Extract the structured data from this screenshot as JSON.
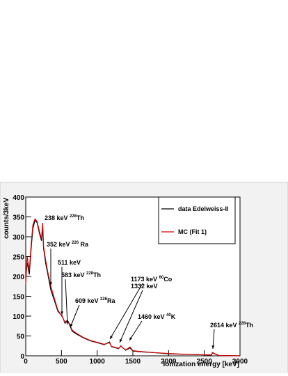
{
  "chart_data": {
    "type": "line",
    "xlabel": "Ionization energy [keV]",
    "ylabel": "counts/3keV",
    "x": [
      0,
      20,
      50,
      80,
      100,
      130,
      160,
      190,
      220,
      238,
      250,
      280,
      310,
      352,
      400,
      450,
      511,
      550,
      583,
      609,
      650,
      700,
      800,
      900,
      1000,
      1100,
      1173,
      1200,
      1300,
      1332,
      1400,
      1460,
      1500,
      1600,
      1800,
      2000,
      2200,
      2400,
      2600,
      2614,
      2700,
      3000
    ],
    "series": [
      {
        "name": "data Edelweiss-II",
        "color": "#000000",
        "values": [
          200,
          235,
          205,
          280,
          320,
          342,
          335,
          310,
          290,
          320,
          270,
          232,
          205,
          165,
          140,
          112,
          100,
          82,
          90,
          80,
          62,
          56,
          46,
          38,
          33,
          28,
          35,
          23,
          18,
          25,
          14,
          20,
          12,
          10,
          8,
          5,
          4,
          3,
          2,
          8,
          1,
          0
        ]
      },
      {
        "name": "MC (Fit 1)",
        "color": "#d40000",
        "values": [
          180,
          250,
          215,
          290,
          330,
          345,
          338,
          315,
          295,
          335,
          275,
          240,
          210,
          175,
          145,
          115,
          98,
          85,
          88,
          82,
          65,
          58,
          47,
          39,
          34,
          29,
          33,
          24,
          19,
          24,
          15,
          22,
          13,
          11,
          8,
          6,
          4,
          3,
          2,
          7,
          1,
          0
        ]
      }
    ],
    "xlim": [
      0,
      3000
    ],
    "ylim": [
      0,
      400
    ],
    "xticks": [
      0,
      500,
      1000,
      1500,
      2000,
      2500,
      3000
    ],
    "yticks": [
      0,
      50,
      100,
      150,
      200,
      250,
      300,
      350,
      400
    ],
    "legend": "upper right",
    "annotations": [
      [
        {
          "text": "238 keV "
        },
        {
          "sup": "228"
        },
        {
          "text": "Th"
        }
      ],
      [
        {
          "text": "352 keV "
        },
        {
          "sup": "226"
        },
        {
          "text": " Ra"
        }
      ],
      [
        {
          "text": "511 keV"
        }
      ],
      [
        {
          "text": "583 keV "
        },
        {
          "sup": "228"
        },
        {
          "text": "Th"
        }
      ],
      [
        {
          "text": "609 keV "
        },
        {
          "sup": "226"
        },
        {
          "text": "Ra"
        }
      ],
      [
        {
          "text": "1173 keV  "
        },
        {
          "sup": "60"
        },
        {
          "text": "Co"
        }
      ],
      [
        {
          "text": "1332 keV"
        }
      ],
      [
        {
          "text": "1460 keV "
        },
        {
          "sup": "40"
        },
        {
          "text": "K"
        }
      ],
      [
        {
          "text": "2614 keV "
        },
        {
          "sup": "228"
        },
        {
          "text": "Th"
        }
      ]
    ]
  }
}
